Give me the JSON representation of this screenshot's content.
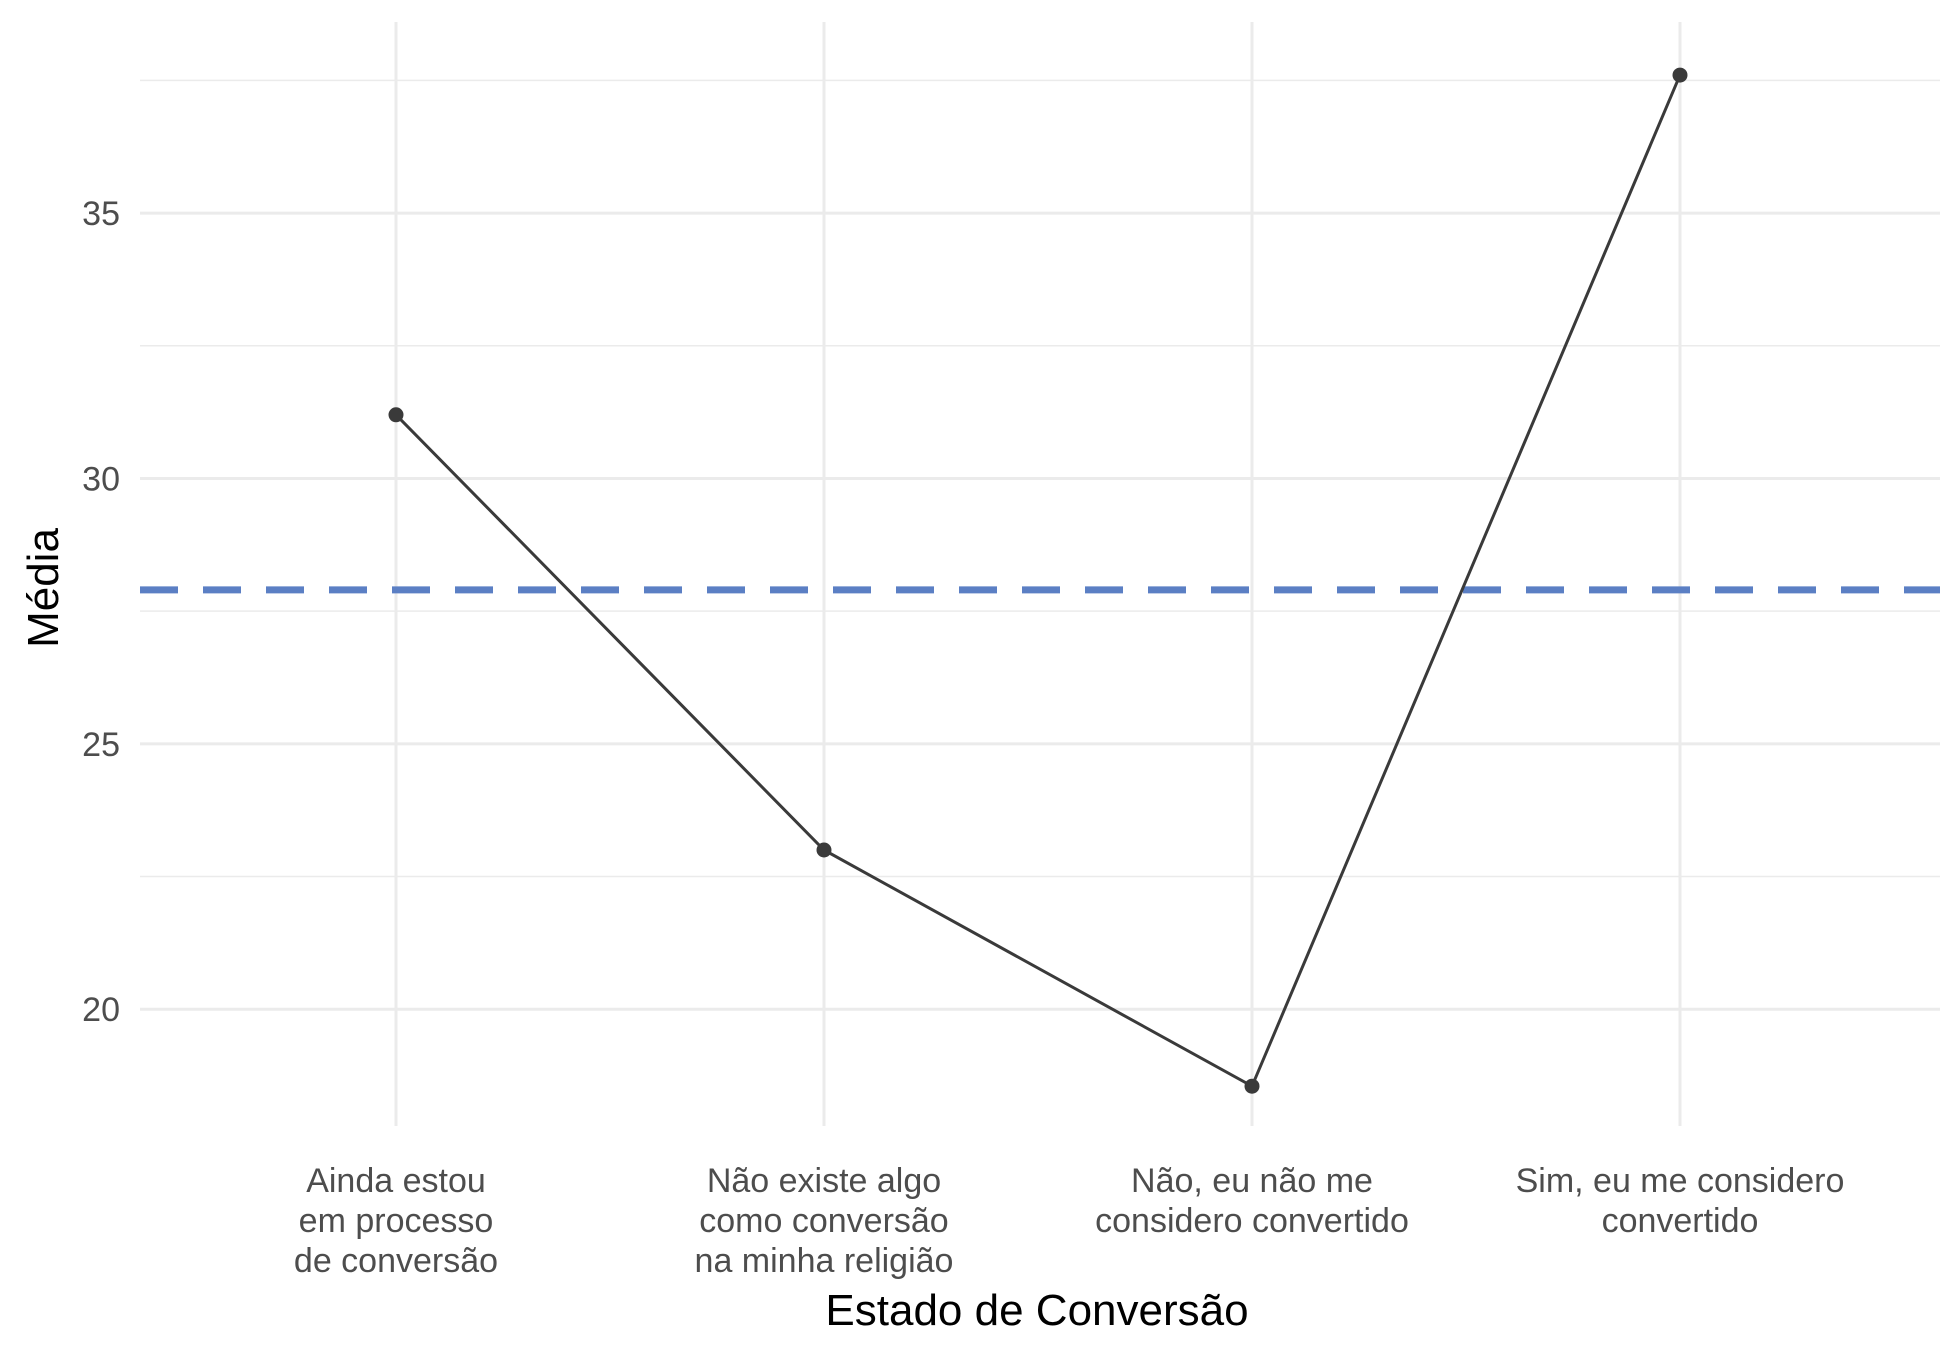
{
  "chart_data": {
    "type": "line",
    "title": "",
    "xlabel": "Estado de Conversão",
    "ylabel": "Média",
    "categories": [
      [
        "Ainda estou",
        "em processo",
        "de conversão"
      ],
      [
        "Não existe algo",
        "como conversão",
        "na minha religião"
      ],
      [
        "Não, eu não me",
        "considero convertido"
      ],
      [
        "Sim, eu me considero",
        "convertido"
      ]
    ],
    "series": [
      {
        "values": [
          31.2,
          23.0,
          18.55,
          37.6
        ]
      }
    ],
    "reference_line": {
      "y": 27.9,
      "style": "dashed",
      "color": "#5b7fc4"
    },
    "ylim": [
      17.8,
      38.6
    ],
    "yticks": [
      20,
      25,
      30,
      35
    ],
    "grid": true,
    "colors": {
      "line": "#3a3a3a",
      "point": "#3a3a3a",
      "grid": "#ebebeb",
      "tick_text": "#4d4d4d"
    }
  }
}
